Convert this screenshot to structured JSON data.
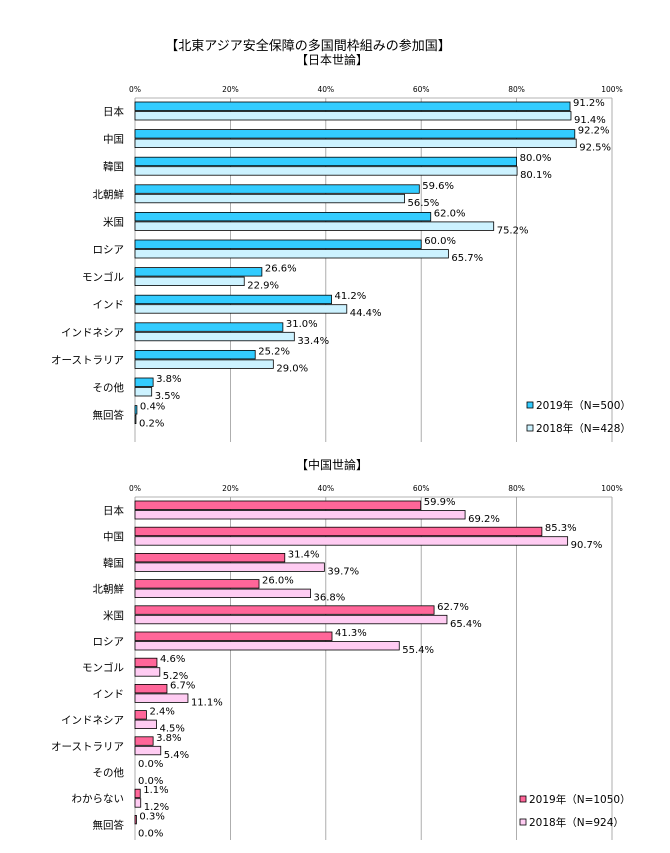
{
  "page_title": "【北東アジア安全保障の多国間枠組みの参加国】",
  "chart_data": [
    {
      "type": "bar",
      "orientation": "horizontal",
      "title": "【日本世論】",
      "xlim": [
        0,
        100
      ],
      "x_ticks": [
        "0%",
        "20%",
        "40%",
        "60%",
        "80%",
        "100%"
      ],
      "categories": [
        "日本",
        "中国",
        "韓国",
        "北朝鮮",
        "米国",
        "ロシア",
        "モンゴル",
        "インド",
        "インドネシア",
        "オーストラリア",
        "その他",
        "無回答"
      ],
      "series": [
        {
          "name": "2019年（N=500）",
          "color": "#33ccff",
          "values": [
            91.2,
            92.2,
            80.0,
            59.6,
            62.0,
            60.0,
            26.6,
            41.2,
            31.0,
            25.2,
            3.8,
            0.4
          ],
          "labels": [
            "91.2%",
            "92.2%",
            "80.0%",
            "59.6%",
            "62.0%",
            "60.0%",
            "26.6%",
            "41.2%",
            "31.0%",
            "25.2%",
            "3.8%",
            "0.4%"
          ]
        },
        {
          "name": "2018年（N=428）",
          "color": "#ccf2ff",
          "values": [
            91.4,
            92.5,
            80.1,
            56.5,
            75.2,
            65.7,
            22.9,
            44.4,
            33.4,
            29.0,
            3.5,
            0.2
          ],
          "labels": [
            "91.4%",
            "92.5%",
            "80.1%",
            "56.5%",
            "75.2%",
            "65.7%",
            "22.9%",
            "44.4%",
            "33.4%",
            "29.0%",
            "3.5%",
            "0.2%"
          ]
        }
      ],
      "legend_position": "bottom-right",
      "grid": true
    },
    {
      "type": "bar",
      "orientation": "horizontal",
      "title": "【中国世論】",
      "xlim": [
        0,
        100
      ],
      "x_ticks": [
        "0%",
        "20%",
        "40%",
        "60%",
        "80%",
        "100%"
      ],
      "categories": [
        "日本",
        "中国",
        "韓国",
        "北朝鮮",
        "米国",
        "ロシア",
        "モンゴル",
        "インド",
        "インドネシア",
        "オーストラリア",
        "その他",
        "わからない",
        "無回答"
      ],
      "series": [
        {
          "name": "2019年（N=1050）",
          "color": "#ff6699",
          "values": [
            59.9,
            85.3,
            31.4,
            26.0,
            62.7,
            41.3,
            4.6,
            6.7,
            2.4,
            3.8,
            0.0,
            1.1,
            0.3
          ],
          "labels": [
            "59.9%",
            "85.3%",
            "31.4%",
            "26.0%",
            "62.7%",
            "41.3%",
            "4.6%",
            "6.7%",
            "2.4%",
            "3.8%",
            "0.0%",
            "1.1%",
            "0.3%"
          ]
        },
        {
          "name": "2018年（N=924）",
          "color": "#ffccf2",
          "values": [
            69.2,
            90.7,
            39.7,
            36.8,
            65.4,
            55.4,
            5.2,
            11.1,
            4.5,
            5.4,
            0.0,
            1.2,
            0.0
          ],
          "labels": [
            "69.2%",
            "90.7%",
            "39.7%",
            "36.8%",
            "65.4%",
            "55.4%",
            "5.2%",
            "11.1%",
            "4.5%",
            "5.4%",
            "0.0%",
            "1.2%",
            "0.0%"
          ]
        }
      ],
      "legend_position": "bottom-right",
      "grid": true
    }
  ]
}
